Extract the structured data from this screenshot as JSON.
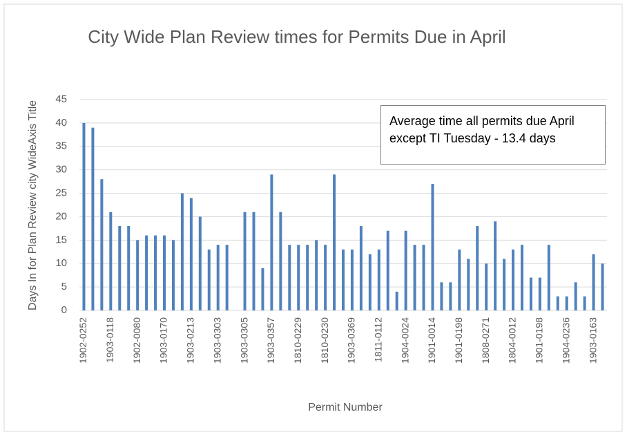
{
  "chart_data": {
    "type": "bar",
    "title": "City Wide Plan Review times for Permits Due in April",
    "x_label": "Permit Number",
    "y_label": "Days In for Plan Review city WideAxis Title",
    "annotation": "Average time all permits due April except TI Tuesday - 13.4 days",
    "categories": [
      "1902-0252",
      null,
      null,
      "1903-0118",
      null,
      null,
      "1902-0080",
      null,
      null,
      "1903-0170",
      null,
      null,
      "1903-0213",
      null,
      null,
      "1903-0303",
      null,
      null,
      "1903-0305",
      null,
      null,
      "1903-0357",
      null,
      null,
      "1810-0229",
      null,
      null,
      "1810-0230",
      null,
      null,
      "1903-0369",
      null,
      null,
      "1811-0112",
      null,
      null,
      "1904-0024",
      null,
      null,
      "1901-0014",
      null,
      null,
      "1901-0198",
      null,
      null,
      "1808-0271",
      null,
      null,
      "1804-0012",
      null,
      null,
      "1901-0198",
      null,
      null,
      "1904-0236",
      null,
      null,
      "1903-0163",
      null
    ],
    "values": [
      40,
      39,
      28,
      21,
      18,
      18,
      15,
      16,
      16,
      16,
      15,
      25,
      24,
      20,
      13,
      14,
      14,
      0,
      21,
      21,
      9,
      29,
      21,
      14,
      14,
      14,
      15,
      14,
      29,
      13,
      13,
      18,
      12,
      13,
      17,
      4,
      17,
      14,
      14,
      27,
      6,
      6,
      13,
      11,
      18,
      10,
      19,
      11,
      13,
      14,
      7,
      7,
      14,
      3,
      3,
      6,
      3,
      12,
      10
    ],
    "color": "#4f81bd",
    "ylim": [
      0,
      45
    ],
    "yticks": [
      0,
      5,
      10,
      15,
      20,
      25,
      30,
      35,
      40,
      45
    ],
    "grid": true
  }
}
